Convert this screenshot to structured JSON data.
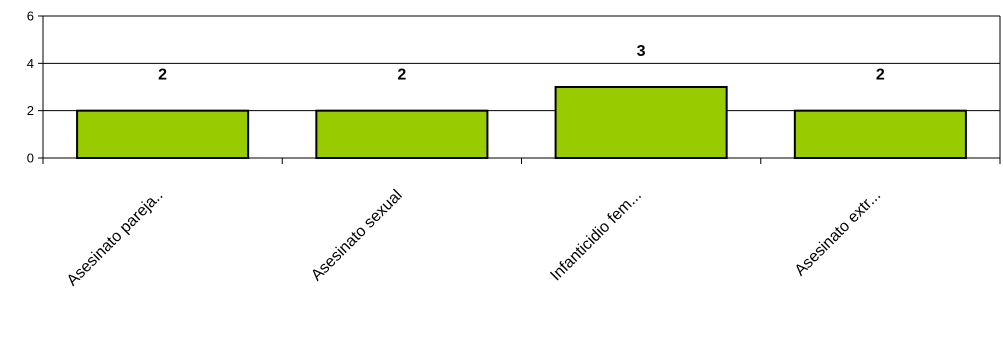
{
  "chart_data": {
    "type": "bar",
    "categories": [
      "Asesinato pareja..",
      "Asesinato sexual",
      "Infanticidio fem...",
      "Asesinato extr..."
    ],
    "values": [
      2,
      2,
      3,
      2
    ],
    "data_labels": [
      "2",
      "2",
      "3",
      "2"
    ],
    "ylim": [
      0,
      6
    ],
    "y_ticks": [
      0,
      2,
      4,
      6
    ],
    "title": "",
    "xlabel": "",
    "ylabel": "",
    "grid": true,
    "legend": "none",
    "bar_color": "#99cc00",
    "bar_edge_color": "#000000"
  }
}
